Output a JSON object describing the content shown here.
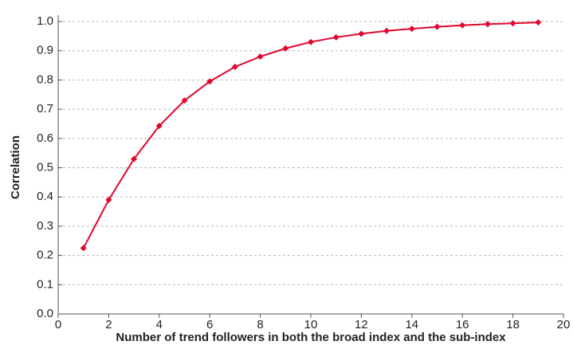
{
  "chart_data": {
    "type": "line",
    "x_label": "Number of trend followers in both the broad index and the sub-index",
    "y_label": "Correlation",
    "x": [
      1,
      2,
      3,
      4,
      5,
      6,
      7,
      8,
      9,
      10,
      11,
      12,
      13,
      14,
      15,
      16,
      17,
      18,
      19
    ],
    "series": [
      {
        "name": "Correlation",
        "color": "#e2062c",
        "values": [
          0.225,
          0.39,
          0.53,
          0.643,
          0.73,
          0.795,
          0.845,
          0.88,
          0.908,
          0.93,
          0.946,
          0.958,
          0.968,
          0.975,
          0.982,
          0.987,
          0.991,
          0.994,
          0.997
        ]
      }
    ],
    "xlim": [
      0,
      20
    ],
    "xticks": [
      0,
      2,
      4,
      6,
      8,
      10,
      12,
      14,
      16,
      18,
      20
    ],
    "ylim": [
      0,
      1
    ],
    "yticks": [
      {
        "value": 0,
        "label": "0.0"
      },
      0.1,
      0.2,
      0.3,
      0.4,
      0.5,
      0.6,
      0.7,
      0.8,
      0.9,
      {
        "value": 1,
        "label": "1.0"
      }
    ],
    "grid": true
  }
}
